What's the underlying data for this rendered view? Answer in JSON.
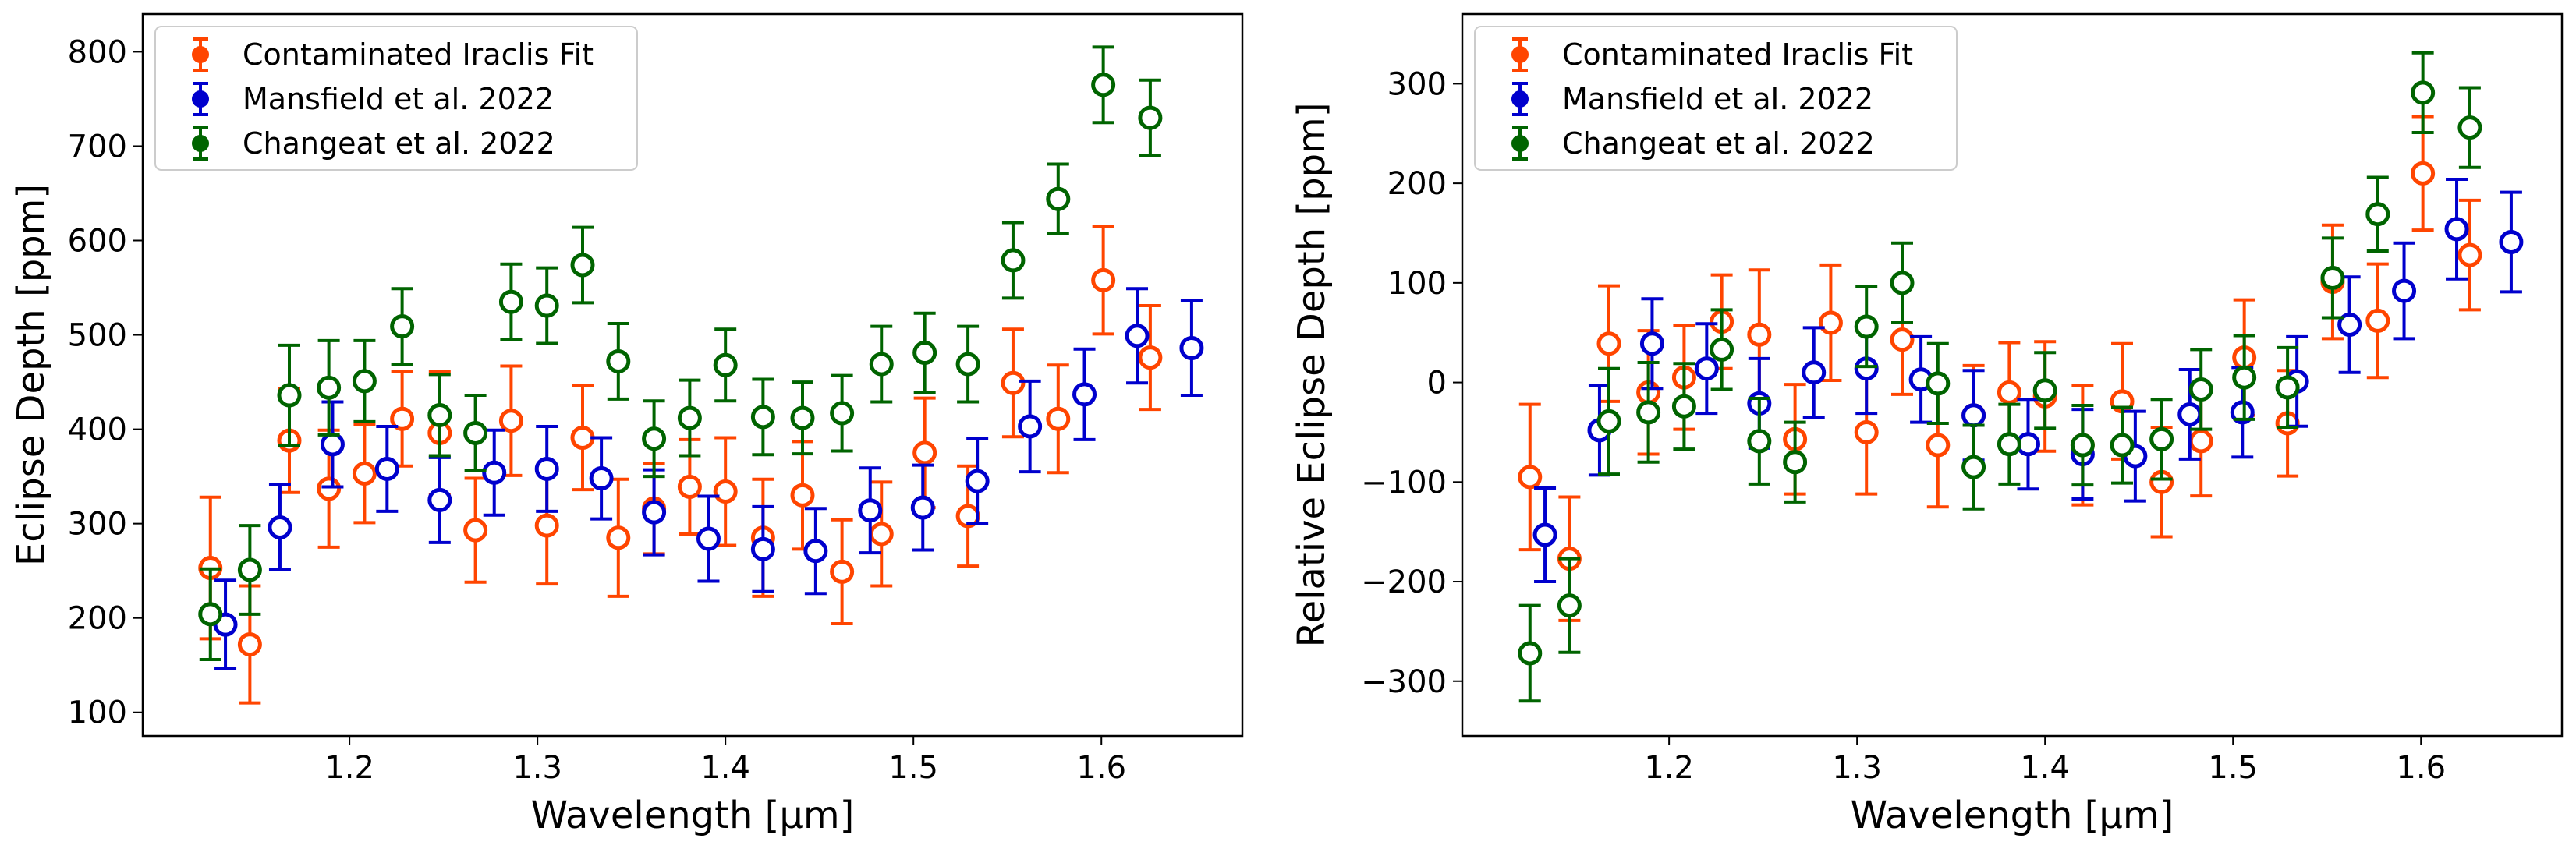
{
  "figure": {
    "panels": 2
  },
  "chart_data": [
    {
      "type": "scatter",
      "title": "",
      "xlabel": "Wavelength [μm]",
      "ylabel": "Eclipse Depth [ppm]",
      "xlim": [
        1.09,
        1.675
      ],
      "ylim": [
        75,
        840
      ],
      "xticks": [
        1.2,
        1.3,
        1.4,
        1.5,
        1.6
      ],
      "xtick_labels": [
        "1.2",
        "1.3",
        "1.4",
        "1.5",
        "1.6"
      ],
      "yticks": [
        100,
        200,
        300,
        400,
        500,
        600,
        700,
        800
      ],
      "ytick_labels": [
        "100",
        "200",
        "300",
        "400",
        "500",
        "600",
        "700",
        "800"
      ],
      "legend_position": "top-left",
      "series": [
        {
          "name": "Contaminated Iraclis Fit",
          "color": "#ff4500",
          "x": [
            1.126,
            1.147,
            1.168,
            1.189,
            1.208,
            1.228,
            1.248,
            1.267,
            1.286,
            1.305,
            1.324,
            1.343,
            1.362,
            1.381,
            1.4,
            1.42,
            1.441,
            1.462,
            1.483,
            1.506,
            1.529,
            1.553,
            1.577,
            1.601,
            1.626
          ],
          "y": [
            253,
            172,
            388,
            337,
            353,
            411,
            396,
            293,
            409,
            298,
            391,
            285,
            316,
            339,
            334,
            285,
            330,
            249,
            289,
            375,
            308,
            449,
            411,
            558,
            476
          ],
          "err": [
            75,
            62,
            55,
            62,
            52,
            50,
            65,
            55,
            58,
            62,
            55,
            62,
            48,
            50,
            57,
            62,
            57,
            55,
            55,
            58,
            53,
            57,
            57,
            57,
            55
          ]
        },
        {
          "name": "Mansfield et al. 2022",
          "color": "#0000cd",
          "x": [
            1.134,
            1.163,
            1.191,
            1.22,
            1.248,
            1.277,
            1.305,
            1.334,
            1.362,
            1.391,
            1.42,
            1.448,
            1.477,
            1.505,
            1.534,
            1.562,
            1.591,
            1.619,
            1.648
          ],
          "y": [
            193,
            296,
            384,
            358,
            325,
            354,
            358,
            348,
            312,
            284,
            273,
            271,
            314,
            317,
            345,
            403,
            437,
            499,
            486
          ],
          "err": [
            47,
            45,
            45,
            45,
            45,
            45,
            45,
            43,
            45,
            45,
            45,
            45,
            45,
            45,
            45,
            48,
            48,
            50,
            50
          ]
        },
        {
          "name": "Changeat et al. 2022",
          "color": "#006400",
          "x": [
            1.126,
            1.147,
            1.168,
            1.189,
            1.208,
            1.228,
            1.248,
            1.267,
            1.286,
            1.305,
            1.324,
            1.343,
            1.362,
            1.381,
            1.4,
            1.42,
            1.441,
            1.462,
            1.483,
            1.506,
            1.529,
            1.553,
            1.577,
            1.601,
            1.626
          ],
          "y": [
            204,
            251,
            436,
            444,
            451,
            509,
            415,
            396,
            535,
            531,
            574,
            472,
            390,
            412,
            468,
            413,
            412,
            417,
            469,
            481,
            469,
            579,
            644,
            765,
            730
          ],
          "err": [
            48,
            47,
            53,
            50,
            43,
            40,
            43,
            40,
            40,
            40,
            40,
            40,
            40,
            40,
            38,
            40,
            38,
            40,
            40,
            42,
            40,
            40,
            37,
            40,
            40
          ]
        }
      ]
    },
    {
      "type": "scatter",
      "title": "",
      "xlabel": "Wavelength [μm]",
      "ylabel": "Relative Eclipse Depth [ppm]",
      "xlim": [
        1.09,
        1.675
      ],
      "ylim": [
        -355,
        370
      ],
      "xticks": [
        1.2,
        1.3,
        1.4,
        1.5,
        1.6
      ],
      "xtick_labels": [
        "1.2",
        "1.3",
        "1.4",
        "1.5",
        "1.6"
      ],
      "yticks": [
        -300,
        -200,
        -100,
        0,
        100,
        200,
        300
      ],
      "ytick_labels": [
        "−300",
        "−200",
        "−100",
        "0",
        "100",
        "200",
        "300"
      ],
      "legend_position": "top-left",
      "series": [
        {
          "name": "Contaminated Iraclis Fit",
          "color": "#ff4500",
          "x": [
            1.126,
            1.147,
            1.168,
            1.189,
            1.208,
            1.228,
            1.248,
            1.267,
            1.286,
            1.305,
            1.324,
            1.343,
            1.362,
            1.381,
            1.4,
            1.42,
            1.441,
            1.462,
            1.483,
            1.506,
            1.529,
            1.553,
            1.577,
            1.601,
            1.626
          ],
          "y": [
            -95,
            -177,
            39,
            -10,
            5,
            61,
            48,
            -57,
            60,
            -50,
            43,
            -63,
            -33,
            -10,
            -14,
            -63,
            -19,
            -100,
            -59,
            25,
            -41,
            101,
            62,
            210,
            128
          ],
          "err": [
            73,
            62,
            58,
            62,
            52,
            47,
            65,
            55,
            58,
            62,
            55,
            62,
            50,
            50,
            55,
            60,
            58,
            55,
            55,
            58,
            53,
            57,
            57,
            57,
            55
          ]
        },
        {
          "name": "Mansfield et al. 2022",
          "color": "#0000cd",
          "x": [
            1.134,
            1.163,
            1.191,
            1.22,
            1.248,
            1.277,
            1.305,
            1.334,
            1.362,
            1.391,
            1.42,
            1.448,
            1.477,
            1.505,
            1.534,
            1.562,
            1.591,
            1.619,
            1.648
          ],
          "y": [
            -153,
            -48,
            39,
            14,
            -21,
            10,
            14,
            3,
            -33,
            -62,
            -72,
            -74,
            -32,
            -30,
            1,
            58,
            92,
            154,
            141
          ],
          "err": [
            47,
            45,
            45,
            45,
            45,
            45,
            45,
            43,
            45,
            45,
            45,
            45,
            45,
            45,
            45,
            48,
            48,
            50,
            50
          ]
        },
        {
          "name": "Changeat et al. 2022",
          "color": "#006400",
          "x": [
            1.126,
            1.147,
            1.168,
            1.189,
            1.208,
            1.228,
            1.248,
            1.267,
            1.286,
            1.305,
            1.324,
            1.343,
            1.362,
            1.381,
            1.4,
            1.42,
            1.441,
            1.462,
            1.483,
            1.506,
            1.529,
            1.553,
            1.577,
            1.601,
            1.626
          ],
          "y": [
            -272,
            -224,
            -39,
            -30,
            -24,
            33,
            -59,
            -80,
            null,
            56,
            100,
            -1,
            -85,
            -62,
            -8,
            -63,
            -63,
            -57,
            -7,
            5,
            -5,
            105,
            169,
            291,
            256
          ],
          "err": [
            48,
            47,
            53,
            50,
            43,
            40,
            43,
            40,
            40,
            40,
            40,
            40,
            42,
            40,
            38,
            40,
            38,
            40,
            40,
            42,
            40,
            40,
            37,
            40,
            40
          ]
        }
      ]
    }
  ]
}
